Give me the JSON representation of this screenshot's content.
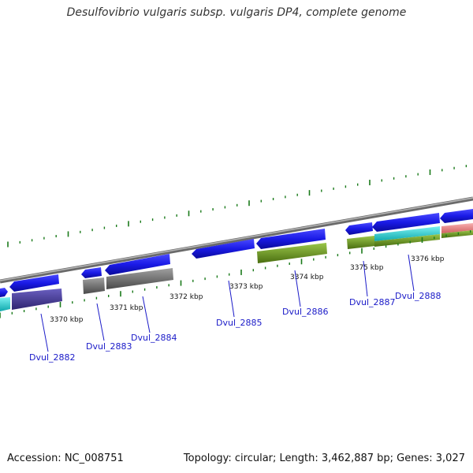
{
  "title": "Desulfovibrio vulgaris subsp. vulgaris DP4, complete genome",
  "footer": {
    "accession": "Accession: NC_008751",
    "summary": "Topology: circular; Length: 3,462,887 bp; Genes: 3,027"
  },
  "ticks": [
    "3370 kbp",
    "3371 kbp",
    "3372 kbp",
    "3373 kbp",
    "3374 kbp",
    "3375 kbp",
    "3376 kbp"
  ],
  "gene_labels": [
    "Dvul_2882",
    "Dvul_2883",
    "Dvul_2884",
    "Dvul_2885",
    "Dvul_2886",
    "Dvul_2887",
    "Dvul_2888"
  ],
  "colors": {
    "backbone": "#8c8c8c",
    "gene": "#1a1ae6",
    "cds_navy": "#4a3fa0",
    "cds_gray": "#707070",
    "cds_green": "#6e9a22",
    "cds_cyan": "#19d3d6",
    "cds_pink": "#e88a8a",
    "tick": "#1a7a1a",
    "label": "#1a1ac8"
  }
}
